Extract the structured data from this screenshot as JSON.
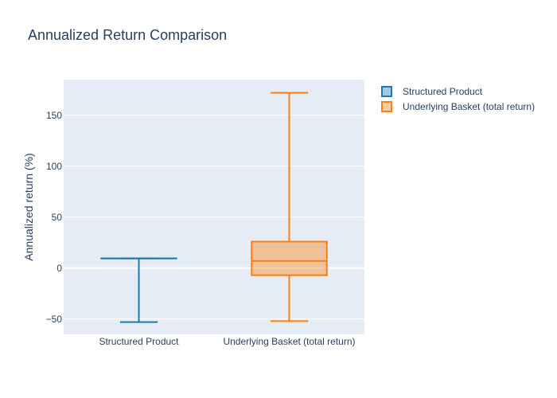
{
  "chart_data": {
    "type": "box",
    "title": "Annualized Return Comparison",
    "xlabel": "",
    "ylabel": "Annualized return (%)",
    "ylim": [
      -65,
      185
    ],
    "yticks": [
      -50,
      0,
      50,
      100,
      150
    ],
    "categories": [
      "Structured Product",
      "Underlying Basket (total return)"
    ],
    "series": [
      {
        "name": "Structured Product",
        "color": "#1f77b4",
        "min": -53,
        "q1": 9.5,
        "median": 9.5,
        "q3": 9.5,
        "max": 9.5
      },
      {
        "name": "Underlying Basket (total return)",
        "color": "#ff7f0e",
        "min": -52,
        "q1": -7,
        "median": 7,
        "q3": 26,
        "max": 172
      }
    ],
    "legend": "top-right",
    "grid": true
  }
}
